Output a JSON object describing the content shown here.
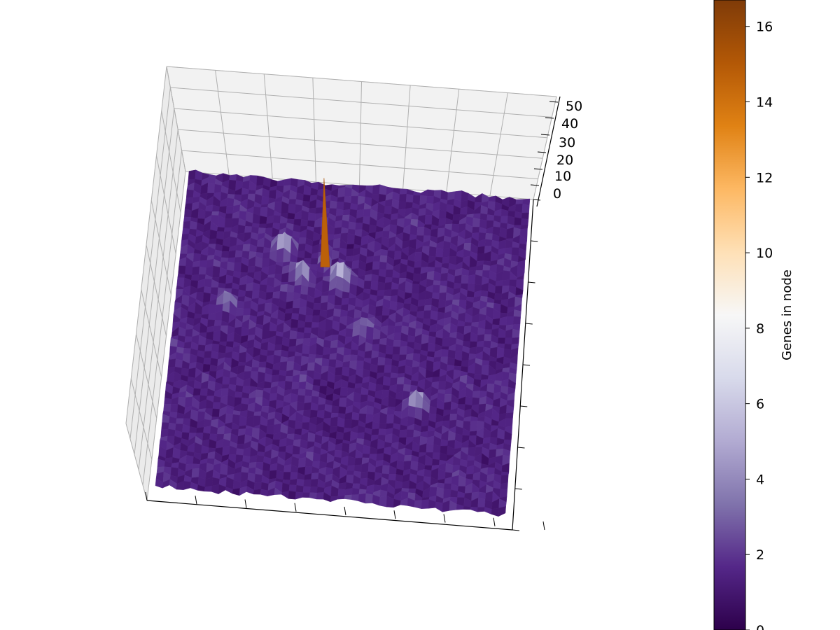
{
  "chart_data": {
    "type": "surface3d",
    "title": "",
    "xlabel": "",
    "ylabel": "",
    "zlabel": "",
    "z_ticks": [
      "0",
      "10",
      "20",
      "30",
      "40",
      "50"
    ],
    "zlim": [
      0,
      50
    ],
    "grid": true,
    "colormap": "PuOr_r",
    "colormap_stops": [
      "#2d004b",
      "#542788",
      "#8073ac",
      "#b2abd2",
      "#d8daeb",
      "#f7f7f7",
      "#fee0b6",
      "#fdb863",
      "#e08214",
      "#b35806",
      "#7f3b08"
    ],
    "colorbar": {
      "label": "Genes in node",
      "range": [
        0,
        16.7
      ],
      "ticks": [
        "0",
        "2",
        "4",
        "6",
        "8",
        "10",
        "12",
        "14",
        "16"
      ],
      "position": "right"
    },
    "surface": {
      "grid_size": 50,
      "typical_values": [
        0,
        2
      ],
      "peaks": [
        {
          "row": 0.25,
          "col": 0.42,
          "value": 16.7
        },
        {
          "row": 0.22,
          "col": 0.3,
          "value": 6
        },
        {
          "row": 0.3,
          "col": 0.36,
          "value": 5
        },
        {
          "row": 0.3,
          "col": 0.47,
          "value": 7
        },
        {
          "row": 0.68,
          "col": 0.72,
          "value": 6
        },
        {
          "row": 0.45,
          "col": 0.55,
          "value": 4
        },
        {
          "row": 0.4,
          "col": 0.15,
          "value": 3
        }
      ]
    }
  }
}
